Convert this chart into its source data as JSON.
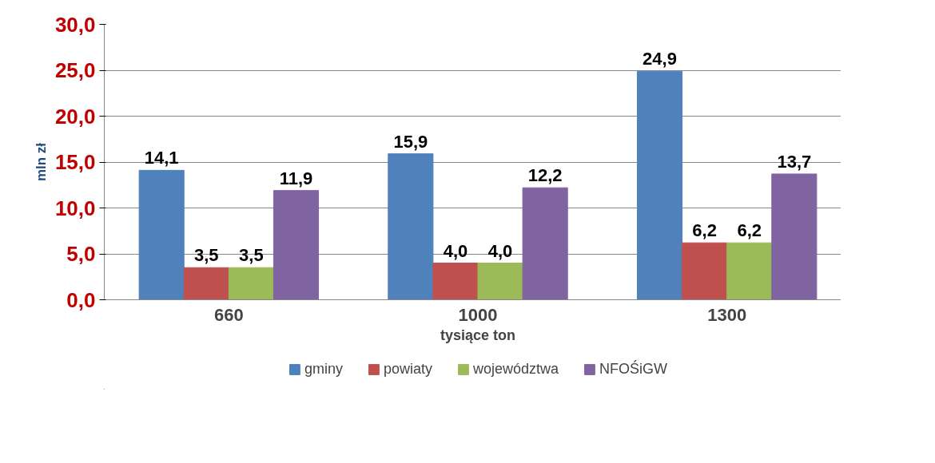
{
  "chart_data": {
    "type": "bar",
    "xlabel": "tysiące ton",
    "ylabel": "mln zł",
    "categories": [
      "660",
      "1000",
      "1300"
    ],
    "series": [
      {
        "name": "gminy",
        "color": "#4f81bd",
        "values": [
          14.1,
          15.9,
          24.9
        ],
        "value_labels": [
          "14,1",
          "15,9",
          "24,9"
        ]
      },
      {
        "name": "powiaty",
        "color": "#c0504d",
        "values": [
          3.5,
          4.0,
          6.2
        ],
        "value_labels": [
          "3,5",
          "4,0",
          "6,2"
        ]
      },
      {
        "name": "województwa",
        "color": "#9bbb59",
        "values": [
          3.5,
          4.0,
          6.2
        ],
        "value_labels": [
          "3,5",
          "4,0",
          "6,2"
        ]
      },
      {
        "name": "NFOŚiGW",
        "color": "#8064a2",
        "values": [
          11.9,
          12.2,
          13.7
        ],
        "value_labels": [
          "11,9",
          "12,2",
          "13,7"
        ]
      }
    ],
    "ylim": [
      0,
      30
    ],
    "yticks": [
      {
        "value": 0,
        "label": "0,0"
      },
      {
        "value": 5,
        "label": "5,0"
      },
      {
        "value": 10,
        "label": "10,0"
      },
      {
        "value": 15,
        "label": "15,0"
      },
      {
        "value": 20,
        "label": "20,0"
      },
      {
        "value": 25,
        "label": "25,0"
      },
      {
        "value": 30,
        "label": "30,0"
      }
    ],
    "grid": "y",
    "legend": "bottom"
  }
}
